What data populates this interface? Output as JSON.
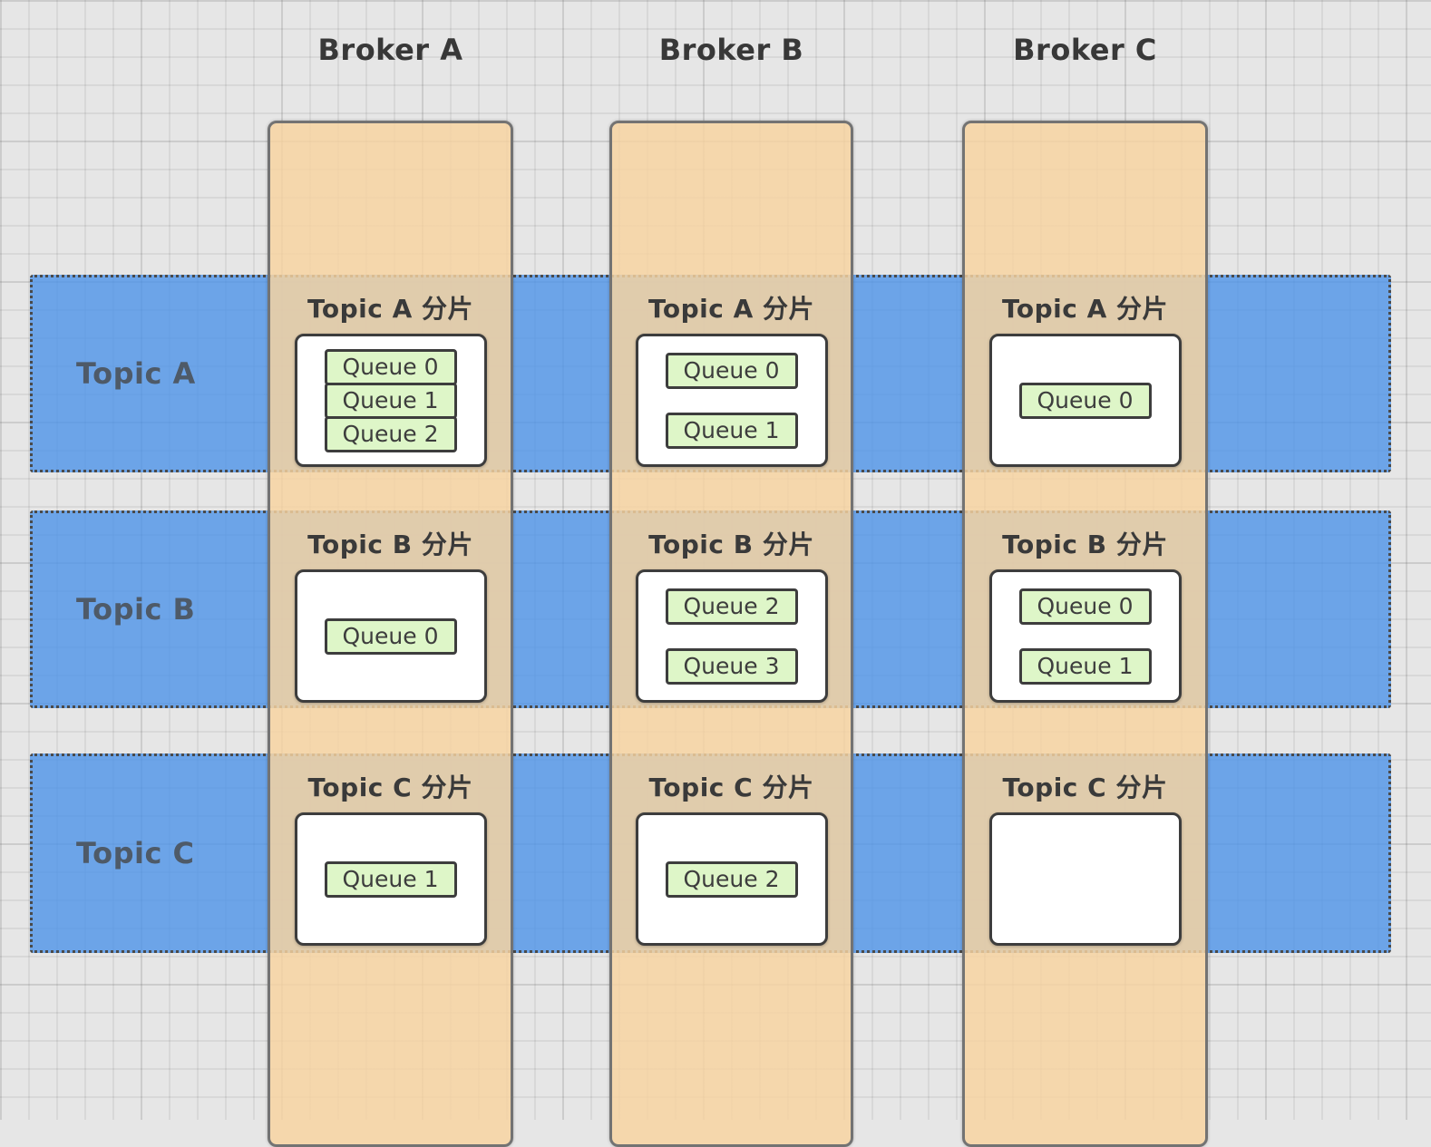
{
  "brokers": [
    {
      "id": "A",
      "label": "Broker A"
    },
    {
      "id": "B",
      "label": "Broker B"
    },
    {
      "id": "C",
      "label": "Broker C"
    }
  ],
  "topics": [
    {
      "id": "A",
      "label": "Topic A"
    },
    {
      "id": "B",
      "label": "Topic B"
    },
    {
      "id": "C",
      "label": "Topic C"
    }
  ],
  "cells": [
    {
      "topic": "A",
      "broker": "A",
      "label": "Topic A 分片",
      "layout": "stacked",
      "queues": [
        "Queue 0",
        "Queue 1",
        "Queue 2"
      ]
    },
    {
      "topic": "A",
      "broker": "B",
      "label": "Topic A 分片",
      "layout": "spaced",
      "queues": [
        "Queue 0",
        "Queue 1"
      ]
    },
    {
      "topic": "A",
      "broker": "C",
      "label": "Topic A 分片",
      "layout": "single",
      "queues": [
        "Queue 0"
      ]
    },
    {
      "topic": "B",
      "broker": "A",
      "label": "Topic B 分片",
      "layout": "single",
      "queues": [
        "Queue 0"
      ]
    },
    {
      "topic": "B",
      "broker": "B",
      "label": "Topic B 分片",
      "layout": "spaced",
      "queues": [
        "Queue 2",
        "Queue 3"
      ]
    },
    {
      "topic": "B",
      "broker": "C",
      "label": "Topic B 分片",
      "layout": "spaced",
      "queues": [
        "Queue 0",
        "Queue 1"
      ]
    },
    {
      "topic": "C",
      "broker": "A",
      "label": "Topic C 分片",
      "layout": "single",
      "queues": [
        "Queue 1"
      ]
    },
    {
      "topic": "C",
      "broker": "B",
      "label": "Topic C 分片",
      "layout": "single",
      "queues": [
        "Queue 2"
      ]
    },
    {
      "topic": "C",
      "broker": "C",
      "label": "Topic C 分片",
      "layout": "empty",
      "queues": []
    }
  ],
  "colors": {
    "canvas_background": "#E6E6E6",
    "broker_fill": "#F8D4A0D4",
    "broker_border": "#737373",
    "topic_fill": "#4E94E8CC",
    "topic_dotted_border": "#4A4A4A",
    "topic_label_text": "#4E5A68",
    "shard_intersection_blend": "#D9C9B2",
    "shape_border": "#3D3D3D",
    "queue_fill": "#DEF6C8",
    "shard_box_fill": "#FFFFFF",
    "shard_label_text": "#3A3A3A"
  }
}
